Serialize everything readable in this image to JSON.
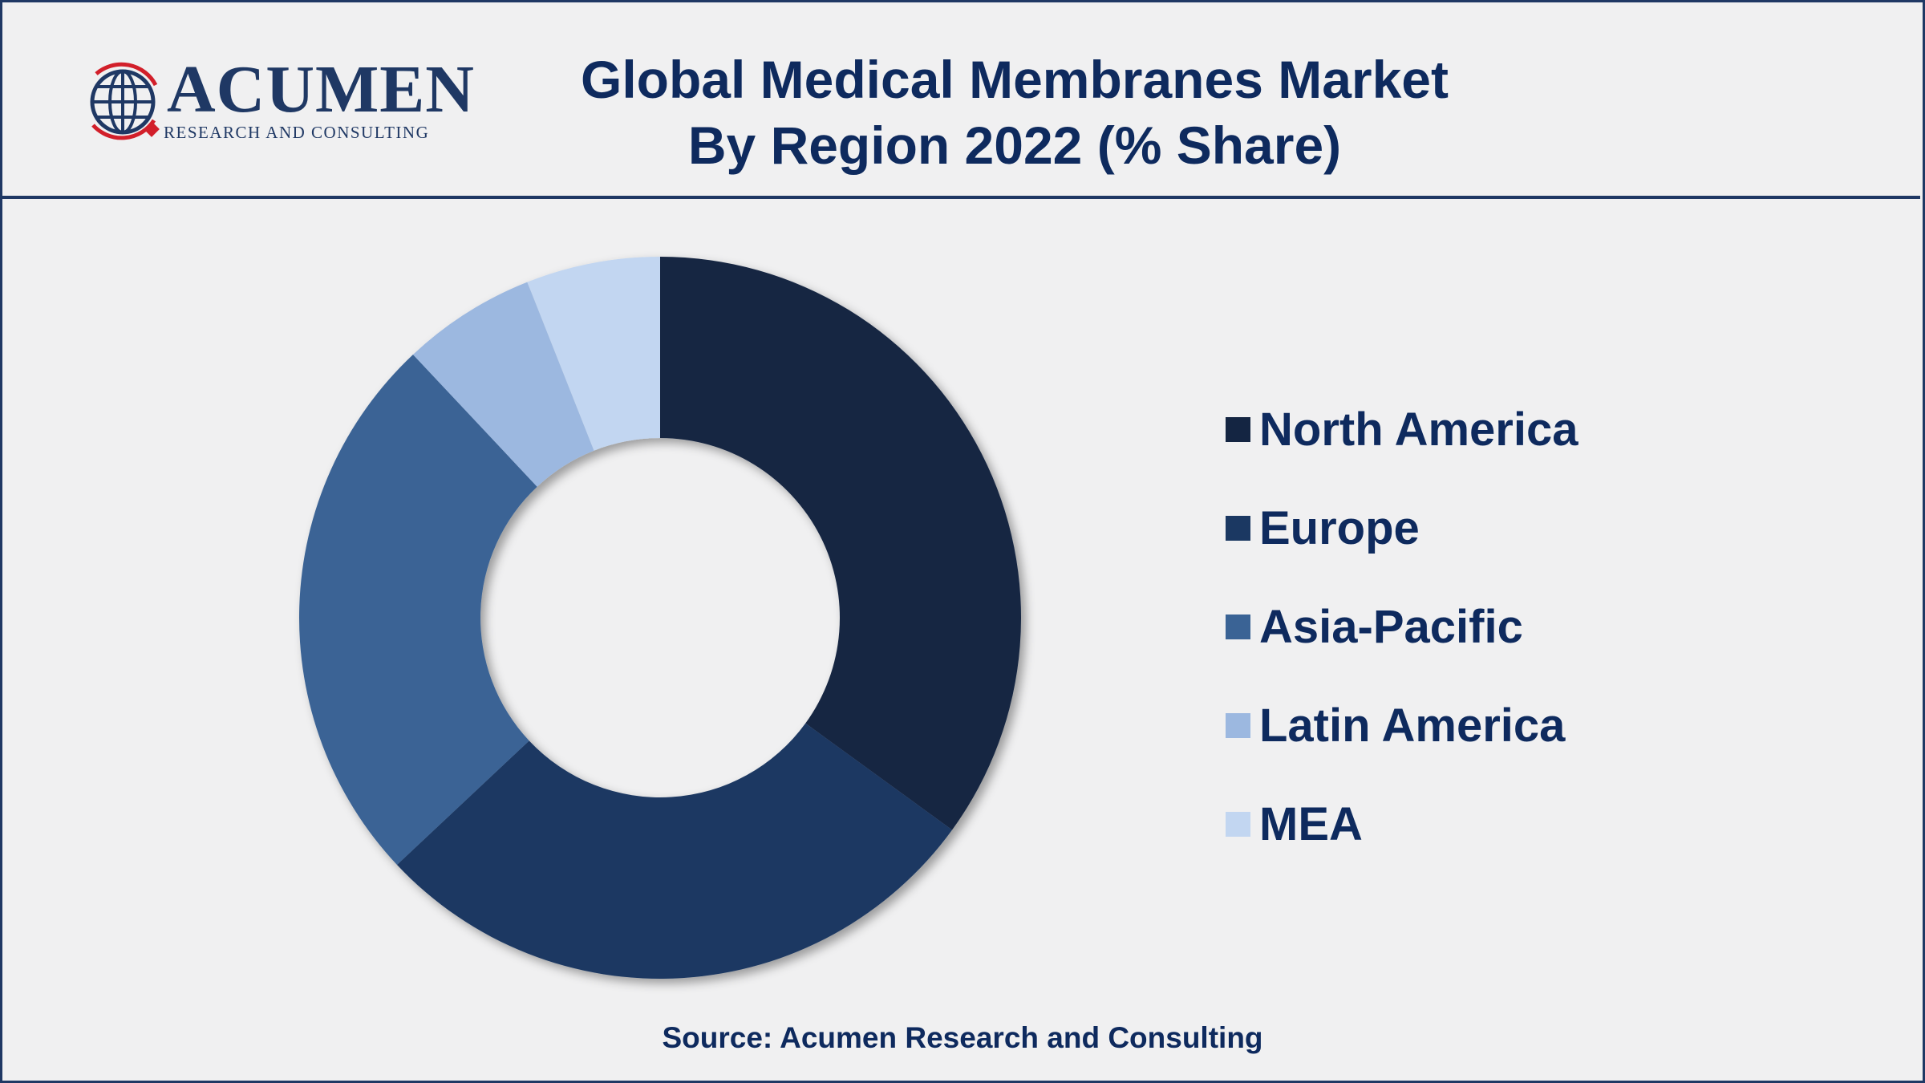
{
  "header": {
    "logo": {
      "wordmark": "ACUMEN",
      "tagline": "RESEARCH AND CONSULTING"
    },
    "title_line1": "Global Medical Membranes Market",
    "title_line2": "By Region 2022 (% Share)"
  },
  "chart_data": {
    "type": "pie",
    "variant": "donut",
    "title": "Global Medical Membranes Market By Region 2022 (% Share)",
    "categories": [
      "North America",
      "Europe",
      "Asia-Pacific",
      "Latin America",
      "MEA"
    ],
    "values": [
      35.0,
      28.0,
      25.0,
      6.0,
      6.0
    ],
    "colors": [
      "#142542",
      "#1b3862",
      "#3a6395",
      "#9cb8e0",
      "#c2d6f1"
    ],
    "legend_position": "right",
    "grid": false
  },
  "source": "Source: Acumen Research and Consulting"
}
